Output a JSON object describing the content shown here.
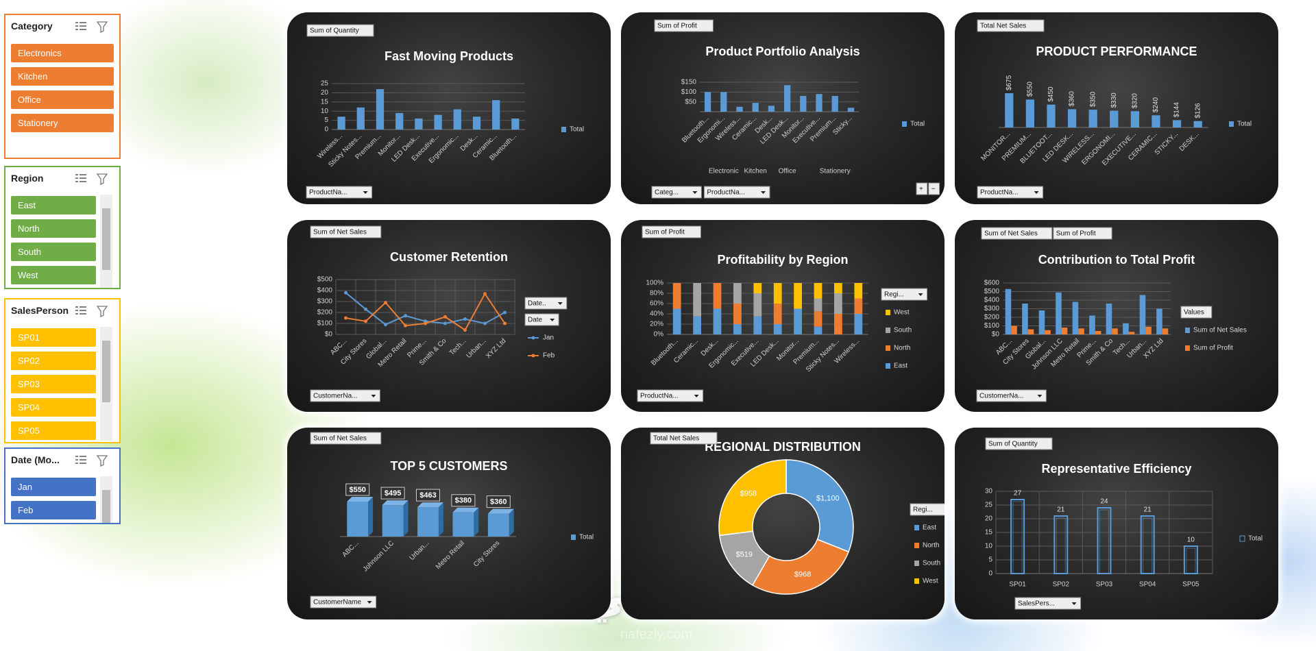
{
  "watermark": {
    "text": "نفذلي",
    "url": "nafezly.com"
  },
  "slicers": [
    {
      "title": "Category",
      "color": "#ed7d31",
      "items": [
        "Electronics",
        "Kitchen",
        "Office",
        "Stationery"
      ]
    },
    {
      "title": "Region",
      "color": "#70ad47",
      "items": [
        "East",
        "North",
        "South",
        "West"
      ]
    },
    {
      "title": "SalesPerson",
      "color": "#ffc000",
      "items": [
        "SP01",
        "SP02",
        "SP03",
        "SP04",
        "SP05"
      ]
    },
    {
      "title": "Date (Mo...",
      "color": "#4472c4",
      "items": [
        "Jan",
        "Feb"
      ]
    }
  ],
  "chart_data": [
    {
      "type": "bar",
      "title": "Fast Moving Products",
      "field_buttons": [
        "Sum of Quantity"
      ],
      "axis_buttons": [
        "ProductNa..."
      ],
      "categories": [
        "Wireless...",
        "Sticky Notes...",
        "Premium...",
        "Monitor...",
        "LED Desk...",
        "Executive...",
        "Ergonomic...",
        "Desk...",
        "Ceramic...",
        "Bluetooth..."
      ],
      "series": [
        {
          "name": "Total",
          "color": "#5b9bd5",
          "values": [
            7,
            12,
            22,
            9,
            6,
            8,
            11,
            7,
            16,
            6
          ]
        }
      ],
      "ylim": [
        0,
        25
      ],
      "yticks": [
        0,
        5,
        10,
        15,
        20,
        25
      ],
      "grid": true
    },
    {
      "type": "bar",
      "title": "Product Portfolio Analysis",
      "field_buttons": [
        "Sum of Profit"
      ],
      "axis_buttons": [
        "Categ...",
        "ProductNa..."
      ],
      "drill_buttons": [
        "+",
        "−"
      ],
      "categories": [
        "Bluetooth...",
        "Ergonomi...",
        "Wireless...",
        "Ceramic...",
        "Desk...",
        "LED Desk...",
        "Monitor...",
        "Executive...",
        "Premium...",
        "Sticky..."
      ],
      "category_groups": [
        "Electronic",
        "Electronic",
        "Electronic",
        "Kitchen",
        "Office",
        "Office",
        "Office",
        "Stationery",
        "Stationery",
        "Stationery"
      ],
      "series": [
        {
          "name": "Total",
          "color": "#5b9bd5",
          "values": [
            100,
            100,
            25,
            45,
            30,
            135,
            80,
            90,
            80,
            20
          ]
        }
      ],
      "ylim": [
        0,
        150
      ],
      "yticks": [
        {
          "value": 50,
          "label": "$50"
        },
        {
          "value": 100,
          "label": "$100"
        },
        {
          "value": 150,
          "label": "$150"
        }
      ],
      "grid": true
    },
    {
      "type": "bar",
      "title": "PRODUCT PERFORMANCE",
      "field_buttons": [
        "Total Net Sales"
      ],
      "axis_buttons": [
        "ProductNa..."
      ],
      "categories": [
        "MONITOR...",
        "PREMIUM...",
        "BLUETOOT...",
        "LED DESK...",
        "WIRELESS...",
        "ERGONOMI...",
        "EXECUTIVE...",
        "CERAMIC...",
        "STICKY...",
        "DESK..."
      ],
      "series": [
        {
          "name": "Total",
          "color": "#5b9bd5",
          "values": [
            675,
            550,
            450,
            360,
            350,
            330,
            320,
            240,
            144,
            126
          ],
          "value_labels": [
            "$675",
            "$550",
            "$450",
            "$360",
            "$350",
            "$330",
            "$320",
            "$240",
            "$144",
            "$126"
          ]
        }
      ]
    },
    {
      "type": "line",
      "title": "Customer Retention",
      "field_buttons": [
        "Sum of Net Sales"
      ],
      "axis_buttons": [
        "CustomerNa..."
      ],
      "legend_buttons": [
        "Date..",
        "Date"
      ],
      "categories": [
        "ABC...",
        "City Stores",
        "Global...",
        "Metro Retail",
        "Prime...",
        "Smith & Co",
        "Tech...",
        "Urban...",
        "XYZ Ltd"
      ],
      "series": [
        {
          "name": "Jan",
          "color": "#5b9bd5",
          "values": [
            380,
            230,
            90,
            170,
            120,
            100,
            140,
            100,
            200
          ]
        },
        {
          "name": "Feb",
          "color": "#ed7d31",
          "values": [
            150,
            120,
            290,
            80,
            100,
            160,
            40,
            370,
            100
          ]
        }
      ],
      "ylim": [
        0,
        500
      ],
      "yticks": [
        {
          "value": 0,
          "label": "$0"
        },
        {
          "value": 100,
          "label": "$100"
        },
        {
          "value": 200,
          "label": "$200"
        },
        {
          "value": 300,
          "label": "$300"
        },
        {
          "value": 400,
          "label": "$400"
        },
        {
          "value": 500,
          "label": "$500"
        }
      ],
      "grid": true
    },
    {
      "type": "bar",
      "stacked": true,
      "title": "Profitability by Region",
      "field_buttons": [
        "Sum of Profit"
      ],
      "axis_buttons": [
        "ProductNa..."
      ],
      "legend_buttons": [
        "Regi..."
      ],
      "categories": [
        "Bluetooth...",
        "Ceramic...",
        "Desk...",
        "Ergonomic...",
        "Executive...",
        "LED Desk...",
        "Monitor...",
        "Premium...",
        "Sticky Notes...",
        "Wireless..."
      ],
      "series": [
        {
          "name": "East",
          "color": "#5b9bd5",
          "values": [
            50,
            35,
            50,
            20,
            35,
            20,
            50,
            15,
            0,
            40
          ]
        },
        {
          "name": "North",
          "color": "#ed7d31",
          "values": [
            50,
            0,
            50,
            40,
            0,
            40,
            0,
            30,
            40,
            30
          ]
        },
        {
          "name": "South",
          "color": "#a5a5a5",
          "values": [
            0,
            65,
            0,
            40,
            45,
            0,
            0,
            25,
            40,
            0
          ]
        },
        {
          "name": "West",
          "color": "#ffc000",
          "values": [
            0,
            0,
            0,
            0,
            20,
            40,
            50,
            30,
            20,
            30
          ]
        }
      ],
      "ylim": [
        0,
        100
      ],
      "yticks": [
        {
          "value": 0,
          "label": "0%"
        },
        {
          "value": 20,
          "label": "20%"
        },
        {
          "value": 40,
          "label": "40%"
        },
        {
          "value": 60,
          "label": "60%"
        },
        {
          "value": 80,
          "label": "80%"
        },
        {
          "value": 100,
          "label": "100%"
        }
      ],
      "grid": true
    },
    {
      "type": "bar",
      "title": "Contribution to Total Profit",
      "field_buttons": [
        "Sum of Net Sales",
        "Sum of Profit"
      ],
      "axis_buttons": [
        "CustomerNa..."
      ],
      "legend_buttons": [
        "Values"
      ],
      "categories": [
        "ABC...",
        "City Stores",
        "Global...",
        "Johnson LLC",
        "Metro Retail",
        "Prime...",
        "Smith & Co",
        "Tech...",
        "Urban...",
        "XYZ Ltd"
      ],
      "series": [
        {
          "name": "Sum of Net Sales",
          "color": "#5b9bd5",
          "values": [
            530,
            360,
            280,
            490,
            380,
            220,
            360,
            130,
            460,
            300
          ]
        },
        {
          "name": "Sum of Profit",
          "color": "#ed7d31",
          "values": [
            100,
            60,
            50,
            80,
            70,
            40,
            70,
            30,
            90,
            70
          ]
        }
      ],
      "ylim": [
        0,
        600
      ],
      "yticks": [
        {
          "value": 0,
          "label": "$0"
        },
        {
          "value": 100,
          "label": "$100"
        },
        {
          "value": 200,
          "label": "$200"
        },
        {
          "value": 300,
          "label": "$300"
        },
        {
          "value": 400,
          "label": "$400"
        },
        {
          "value": 500,
          "label": "$500"
        },
        {
          "value": 600,
          "label": "$600"
        }
      ],
      "grid": true
    },
    {
      "type": "bar",
      "style": "3d",
      "title": "TOP 5 CUSTOMERS",
      "field_buttons": [
        "Sum of Net Sales"
      ],
      "axis_buttons": [
        "CustomerName"
      ],
      "categories": [
        "ABC...",
        "Johnson LLC",
        "Urban...",
        "Metro Retail",
        "City Stores"
      ],
      "series": [
        {
          "name": "Total",
          "color": "#5b9bd5",
          "values": [
            550,
            495,
            463,
            380,
            360
          ],
          "value_labels": [
            "$550",
            "$495",
            "$463",
            "$380",
            "$360"
          ]
        }
      ]
    },
    {
      "type": "donut",
      "title": "REGIONAL DISTRIBUTION",
      "field_buttons": [
        "Total Net Sales"
      ],
      "legend_buttons": [
        "Regi..."
      ],
      "categories": [
        "East",
        "North",
        "South",
        "West"
      ],
      "values": [
        1100,
        968,
        519,
        958
      ],
      "value_labels": [
        "$1,100",
        "$968",
        "$519",
        "$958"
      ],
      "colors": [
        "#5b9bd5",
        "#ed7d31",
        "#a5a5a5",
        "#ffc000"
      ]
    },
    {
      "type": "bar",
      "style": "outline",
      "data_labels": true,
      "title": "Representative Efficiency",
      "field_buttons": [
        "Sum of Quantity"
      ],
      "axis_buttons": [
        "SalesPers..."
      ],
      "categories": [
        "SP01",
        "SP02",
        "SP03",
        "SP04",
        "SP05"
      ],
      "series": [
        {
          "name": "Total",
          "color": "#5b9bd5",
          "values": [
            27,
            21,
            24,
            21,
            10
          ]
        }
      ],
      "ylim": [
        0,
        30
      ],
      "yticks": [
        0,
        5,
        10,
        15,
        20,
        25,
        30
      ],
      "grid": true
    }
  ]
}
